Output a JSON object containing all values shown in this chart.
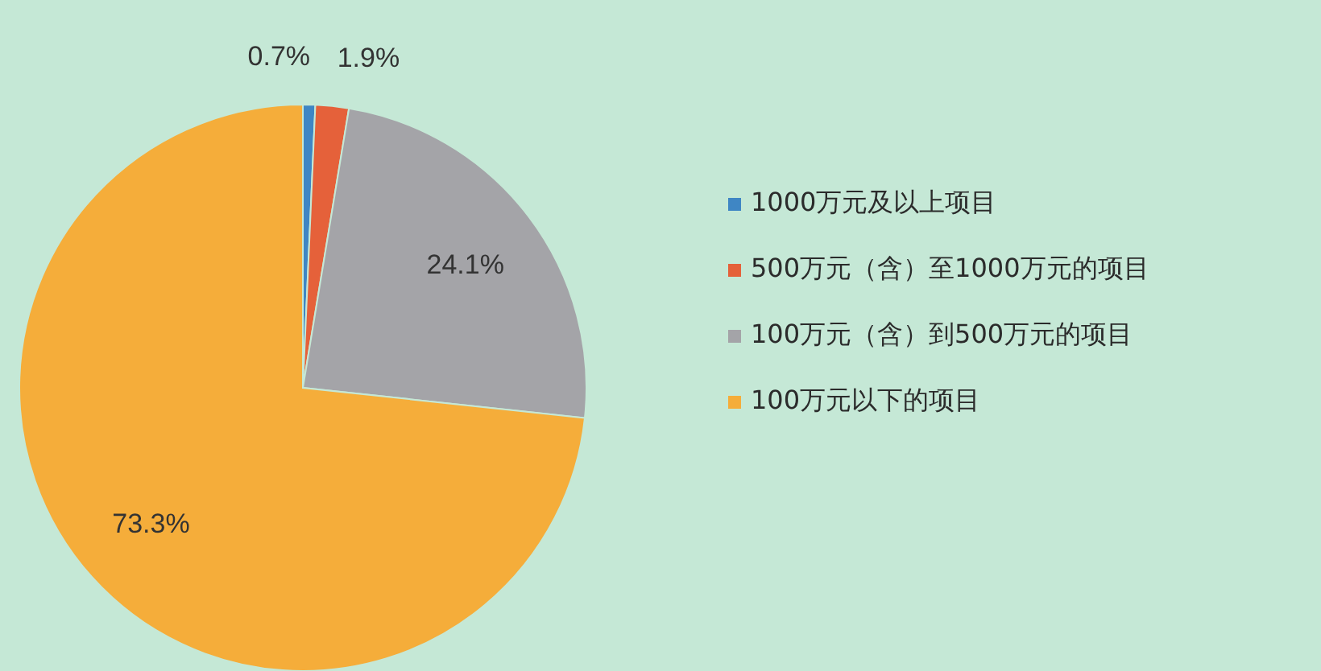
{
  "chart_data": {
    "type": "pie",
    "categories": [
      "1000万元及以上项目",
      "500万元（含）至1000万元的项目",
      "100万元（含）到500万元的项目",
      "100万元以下的项目"
    ],
    "values": [
      0.7,
      1.9,
      24.1,
      73.3
    ],
    "colors": [
      "#3f86c4",
      "#e5613a",
      "#a4a4a8",
      "#f5ad3a"
    ],
    "value_labels": [
      "0.7%",
      "1.9%",
      "24.1%",
      "73.3%"
    ],
    "legend": "right"
  }
}
